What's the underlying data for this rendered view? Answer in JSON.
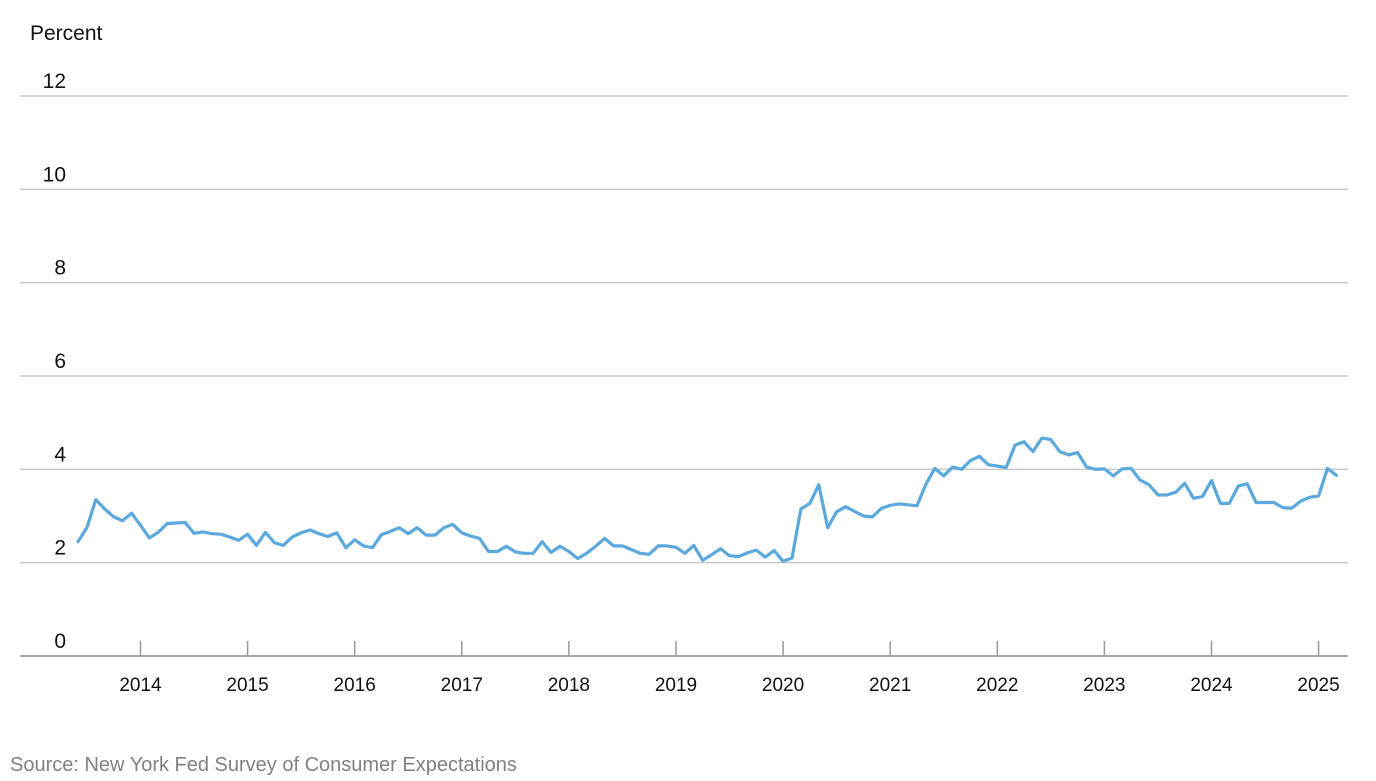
{
  "chart_data": {
    "type": "line",
    "ylabel": "Percent",
    "ylim": [
      0,
      12
    ],
    "yticks": [
      0,
      2,
      4,
      6,
      8,
      10,
      12
    ],
    "xlim": [
      "2013-06-01",
      "2025-04-01"
    ],
    "xticks": [
      "2014",
      "2015",
      "2016",
      "2017",
      "2018",
      "2019",
      "2020",
      "2021",
      "2022",
      "2023",
      "2024",
      "2025"
    ],
    "grid": "horizontal",
    "line_color": "#5ba8dc",
    "grid_color": "#c8c8c8",
    "series": [
      {
        "x": [
          "2013-06",
          "2013-07",
          "2013-08",
          "2013-09",
          "2013-10",
          "2013-11",
          "2013-12",
          "2014-01",
          "2014-02",
          "2014-03",
          "2014-04",
          "2014-05",
          "2014-06",
          "2014-07",
          "2014-08",
          "2014-09",
          "2014-10",
          "2014-11",
          "2014-12",
          "2015-01",
          "2015-02",
          "2015-03",
          "2015-04",
          "2015-05",
          "2015-06",
          "2015-07",
          "2015-08",
          "2015-09",
          "2015-10",
          "2015-11",
          "2015-12",
          "2016-01",
          "2016-02",
          "2016-03",
          "2016-04",
          "2016-05",
          "2016-06",
          "2016-07",
          "2016-08",
          "2016-09",
          "2016-10",
          "2016-11",
          "2016-12",
          "2017-01",
          "2017-02",
          "2017-03",
          "2017-04",
          "2017-05",
          "2017-06",
          "2017-07",
          "2017-08",
          "2017-09",
          "2017-10",
          "2017-11",
          "2017-12",
          "2018-01",
          "2018-02",
          "2018-03",
          "2018-04",
          "2018-05",
          "2018-06",
          "2018-07",
          "2018-08",
          "2018-09",
          "2018-10",
          "2018-11",
          "2018-12",
          "2019-01",
          "2019-02",
          "2019-03",
          "2019-04",
          "2019-05",
          "2019-06",
          "2019-07",
          "2019-08",
          "2019-09",
          "2019-10",
          "2019-11",
          "2019-12",
          "2020-01",
          "2020-02",
          "2020-03",
          "2020-04",
          "2020-05",
          "2020-06",
          "2020-07",
          "2020-08",
          "2020-09",
          "2020-10",
          "2020-11",
          "2020-12",
          "2021-01",
          "2021-02",
          "2021-03",
          "2021-04",
          "2021-05",
          "2021-06",
          "2021-07",
          "2021-08",
          "2021-09",
          "2021-10",
          "2021-11",
          "2021-12",
          "2022-01",
          "2022-02",
          "2022-03",
          "2022-04",
          "2022-05",
          "2022-06",
          "2022-07",
          "2022-08",
          "2022-09",
          "2022-10",
          "2022-11",
          "2022-12",
          "2023-01",
          "2023-02",
          "2023-03",
          "2023-04",
          "2023-05",
          "2023-06",
          "2023-07",
          "2023-08",
          "2023-09",
          "2023-10",
          "2023-11",
          "2023-12",
          "2024-01",
          "2024-02",
          "2024-03",
          "2024-04",
          "2024-05",
          "2024-06",
          "2024-07",
          "2024-08",
          "2024-09",
          "2024-10",
          "2024-11",
          "2024-12",
          "2025-01",
          "2025-02",
          "2025-03"
        ],
        "values": [
          2.45,
          2.75,
          3.35,
          3.15,
          2.98,
          2.9,
          3.06,
          2.8,
          2.53,
          2.65,
          2.84,
          2.85,
          2.86,
          2.63,
          2.66,
          2.62,
          2.61,
          2.55,
          2.48,
          2.61,
          2.37,
          2.65,
          2.43,
          2.37,
          2.55,
          2.64,
          2.7,
          2.62,
          2.56,
          2.64,
          2.32,
          2.49,
          2.36,
          2.32,
          2.6,
          2.67,
          2.75,
          2.62,
          2.75,
          2.59,
          2.59,
          2.75,
          2.82,
          2.64,
          2.57,
          2.52,
          2.24,
          2.24,
          2.35,
          2.23,
          2.2,
          2.2,
          2.45,
          2.22,
          2.35,
          2.24,
          2.09,
          2.2,
          2.35,
          2.52,
          2.36,
          2.36,
          2.28,
          2.2,
          2.18,
          2.36,
          2.36,
          2.33,
          2.2,
          2.37,
          2.05,
          2.17,
          2.3,
          2.15,
          2.13,
          2.21,
          2.27,
          2.12,
          2.26,
          2.03,
          2.1,
          3.15,
          3.27,
          3.67,
          2.75,
          3.09,
          3.2,
          3.1,
          3.0,
          2.98,
          3.16,
          3.23,
          3.26,
          3.24,
          3.22,
          3.68,
          4.02,
          3.86,
          4.05,
          4.0,
          4.19,
          4.28,
          4.1,
          4.07,
          4.04,
          4.52,
          4.59,
          4.38,
          4.67,
          4.64,
          4.38,
          4.31,
          4.36,
          4.05,
          4.0,
          4.01,
          3.86,
          4.01,
          4.02,
          3.77,
          3.67,
          3.45,
          3.45,
          3.51,
          3.7,
          3.38,
          3.42,
          3.76,
          3.27,
          3.27,
          3.64,
          3.69,
          3.29,
          3.29,
          3.29,
          3.18,
          3.17,
          3.32,
          3.4,
          3.43,
          4.02,
          3.87
        ]
      }
    ]
  },
  "source": "Source: New York Fed Survey of Consumer Expectations"
}
